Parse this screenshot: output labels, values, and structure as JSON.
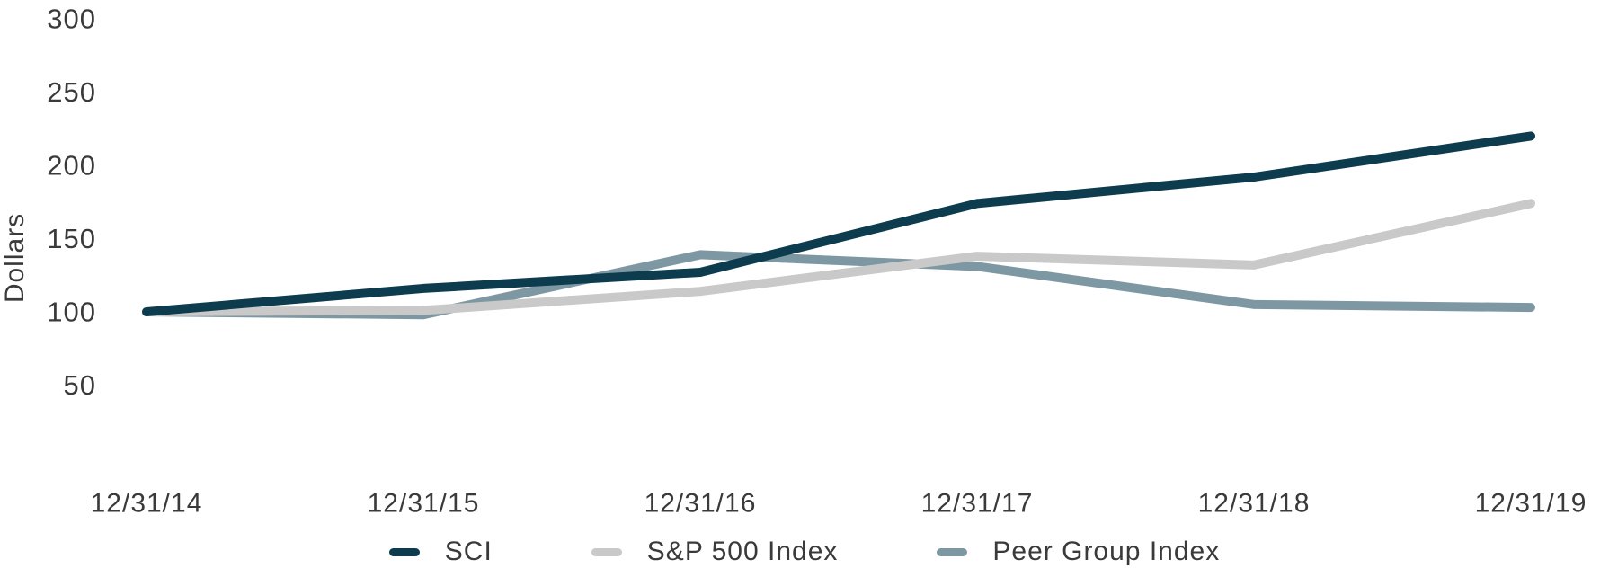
{
  "chart_data": {
    "type": "line",
    "title": "",
    "xlabel": "",
    "ylabel": "Dollars",
    "categories": [
      "12/31/14",
      "12/31/15",
      "12/31/16",
      "12/31/17",
      "12/31/18",
      "12/31/19"
    ],
    "series": [
      {
        "name": "SCI",
        "color": "#0d3c4e",
        "values": [
          100,
          116,
          127,
          174,
          192,
          220
        ]
      },
      {
        "name": "S&P 500 Index",
        "color": "#c9c9c9",
        "values": [
          100,
          101,
          114,
          138,
          132,
          174
        ]
      },
      {
        "name": "Peer Group Index",
        "color": "#7e98a3",
        "values": [
          100,
          98,
          139,
          131,
          105,
          103
        ]
      }
    ],
    "yticks": [
      50,
      100,
      150,
      200,
      250,
      300
    ],
    "ylim": [
      50,
      300
    ],
    "grid": false,
    "axis_lines": false,
    "legend_position": "bottom",
    "text_color": "#3a3a3a"
  }
}
